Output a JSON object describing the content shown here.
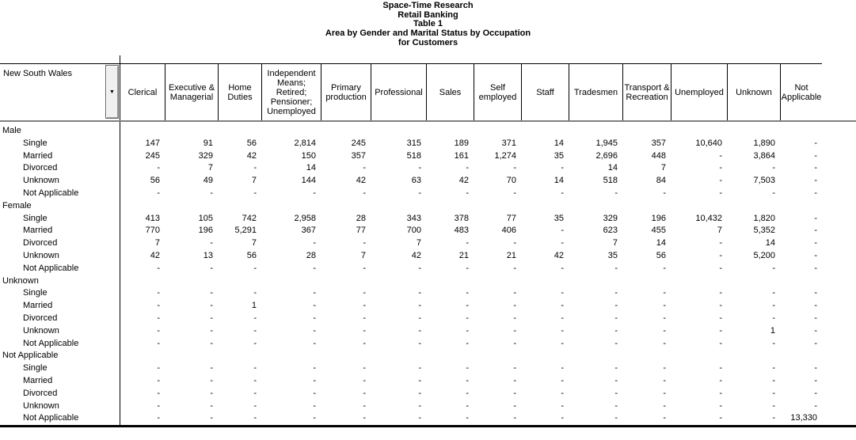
{
  "title_lines": [
    "Space-Time Research",
    "Retail Banking",
    "Table 1",
    "Area by Gender and Marital Status by Occupation",
    "for Customers"
  ],
  "icons": {
    "area_dropdown": "▼"
  },
  "colors": {
    "text": "#000000",
    "grid_line": "#000000",
    "header_underline": "#808080",
    "dropdown_button_bg": "#f0f0f0"
  },
  "table": {
    "corner_label": "New South Wales",
    "columns": [
      "Clerical",
      "Executive & Managerial",
      "Home Duties",
      "Independent Means; Retired; Pensioner; Unemployed",
      "Primary production",
      "Professional",
      "Sales",
      "Self employed",
      "Staff",
      "Tradesmen",
      "Transport & Recreation",
      "Unemployed",
      "Unknown",
      "Not Applicable"
    ],
    "groups": [
      {
        "label": "Male",
        "rows": [
          {
            "label": "Single",
            "values": [
              "147",
              "91",
              "56",
              "2,814",
              "245",
              "315",
              "189",
              "371",
              "14",
              "1,945",
              "357",
              "10,640",
              "1,890",
              "-"
            ]
          },
          {
            "label": "Married",
            "values": [
              "245",
              "329",
              "42",
              "150",
              "357",
              "518",
              "161",
              "1,274",
              "35",
              "2,696",
              "448",
              "-",
              "3,864",
              "-"
            ]
          },
          {
            "label": "Divorced",
            "values": [
              "-",
              "7",
              "-",
              "14",
              "-",
              "-",
              "-",
              "-",
              "-",
              "14",
              "7",
              "-",
              "-",
              "-"
            ]
          },
          {
            "label": "Unknown",
            "values": [
              "56",
              "49",
              "7",
              "144",
              "42",
              "63",
              "42",
              "70",
              "14",
              "518",
              "84",
              "-",
              "7,503",
              "-"
            ]
          },
          {
            "label": "Not Applicable",
            "values": [
              "-",
              "-",
              "-",
              "-",
              "-",
              "-",
              "-",
              "-",
              "-",
              "-",
              "-",
              "-",
              "-",
              "-"
            ]
          }
        ]
      },
      {
        "label": "Female",
        "rows": [
          {
            "label": "Single",
            "values": [
              "413",
              "105",
              "742",
              "2,958",
              "28",
              "343",
              "378",
              "77",
              "35",
              "329",
              "196",
              "10,432",
              "1,820",
              "-"
            ]
          },
          {
            "label": "Married",
            "values": [
              "770",
              "196",
              "5,291",
              "367",
              "77",
              "700",
              "483",
              "406",
              "-",
              "623",
              "455",
              "7",
              "5,352",
              "-"
            ]
          },
          {
            "label": "Divorced",
            "values": [
              "7",
              "-",
              "7",
              "-",
              "-",
              "7",
              "-",
              "-",
              "-",
              "7",
              "14",
              "-",
              "14",
              "-"
            ]
          },
          {
            "label": "Unknown",
            "values": [
              "42",
              "13",
              "56",
              "28",
              "7",
              "42",
              "21",
              "21",
              "42",
              "35",
              "56",
              "-",
              "5,200",
              "-"
            ]
          },
          {
            "label": "Not Applicable",
            "values": [
              "-",
              "-",
              "-",
              "-",
              "-",
              "-",
              "-",
              "-",
              "-",
              "-",
              "-",
              "-",
              "-",
              "-"
            ]
          }
        ]
      },
      {
        "label": "Unknown",
        "rows": [
          {
            "label": "Single",
            "values": [
              "-",
              "-",
              "-",
              "-",
              "-",
              "-",
              "-",
              "-",
              "-",
              "-",
              "-",
              "-",
              "-",
              "-"
            ]
          },
          {
            "label": "Married",
            "values": [
              "-",
              "-",
              "1",
              "-",
              "-",
              "-",
              "-",
              "-",
              "-",
              "-",
              "-",
              "-",
              "-",
              "-"
            ]
          },
          {
            "label": "Divorced",
            "values": [
              "-",
              "-",
              "-",
              "-",
              "-",
              "-",
              "-",
              "-",
              "-",
              "-",
              "-",
              "-",
              "-",
              "-"
            ]
          },
          {
            "label": "Unknown",
            "values": [
              "-",
              "-",
              "-",
              "-",
              "-",
              "-",
              "-",
              "-",
              "-",
              "-",
              "-",
              "-",
              "1",
              "-"
            ]
          },
          {
            "label": "Not Applicable",
            "values": [
              "-",
              "-",
              "-",
              "-",
              "-",
              "-",
              "-",
              "-",
              "-",
              "-",
              "-",
              "-",
              "-",
              "-"
            ]
          }
        ]
      },
      {
        "label": "Not Applicable",
        "rows": [
          {
            "label": "Single",
            "values": [
              "-",
              "-",
              "-",
              "-",
              "-",
              "-",
              "-",
              "-",
              "-",
              "-",
              "-",
              "-",
              "-",
              "-"
            ]
          },
          {
            "label": "Married",
            "values": [
              "-",
              "-",
              "-",
              "-",
              "-",
              "-",
              "-",
              "-",
              "-",
              "-",
              "-",
              "-",
              "-",
              "-"
            ]
          },
          {
            "label": "Divorced",
            "values": [
              "-",
              "-",
              "-",
              "-",
              "-",
              "-",
              "-",
              "-",
              "-",
              "-",
              "-",
              "-",
              "-",
              "-"
            ]
          },
          {
            "label": "Unknown",
            "values": [
              "-",
              "-",
              "-",
              "-",
              "-",
              "-",
              "-",
              "-",
              "-",
              "-",
              "-",
              "-",
              "-",
              "-"
            ]
          },
          {
            "label": "Not Applicable",
            "values": [
              "-",
              "-",
              "-",
              "-",
              "-",
              "-",
              "-",
              "-",
              "-",
              "-",
              "-",
              "-",
              "-",
              "13,330"
            ]
          }
        ]
      }
    ]
  }
}
